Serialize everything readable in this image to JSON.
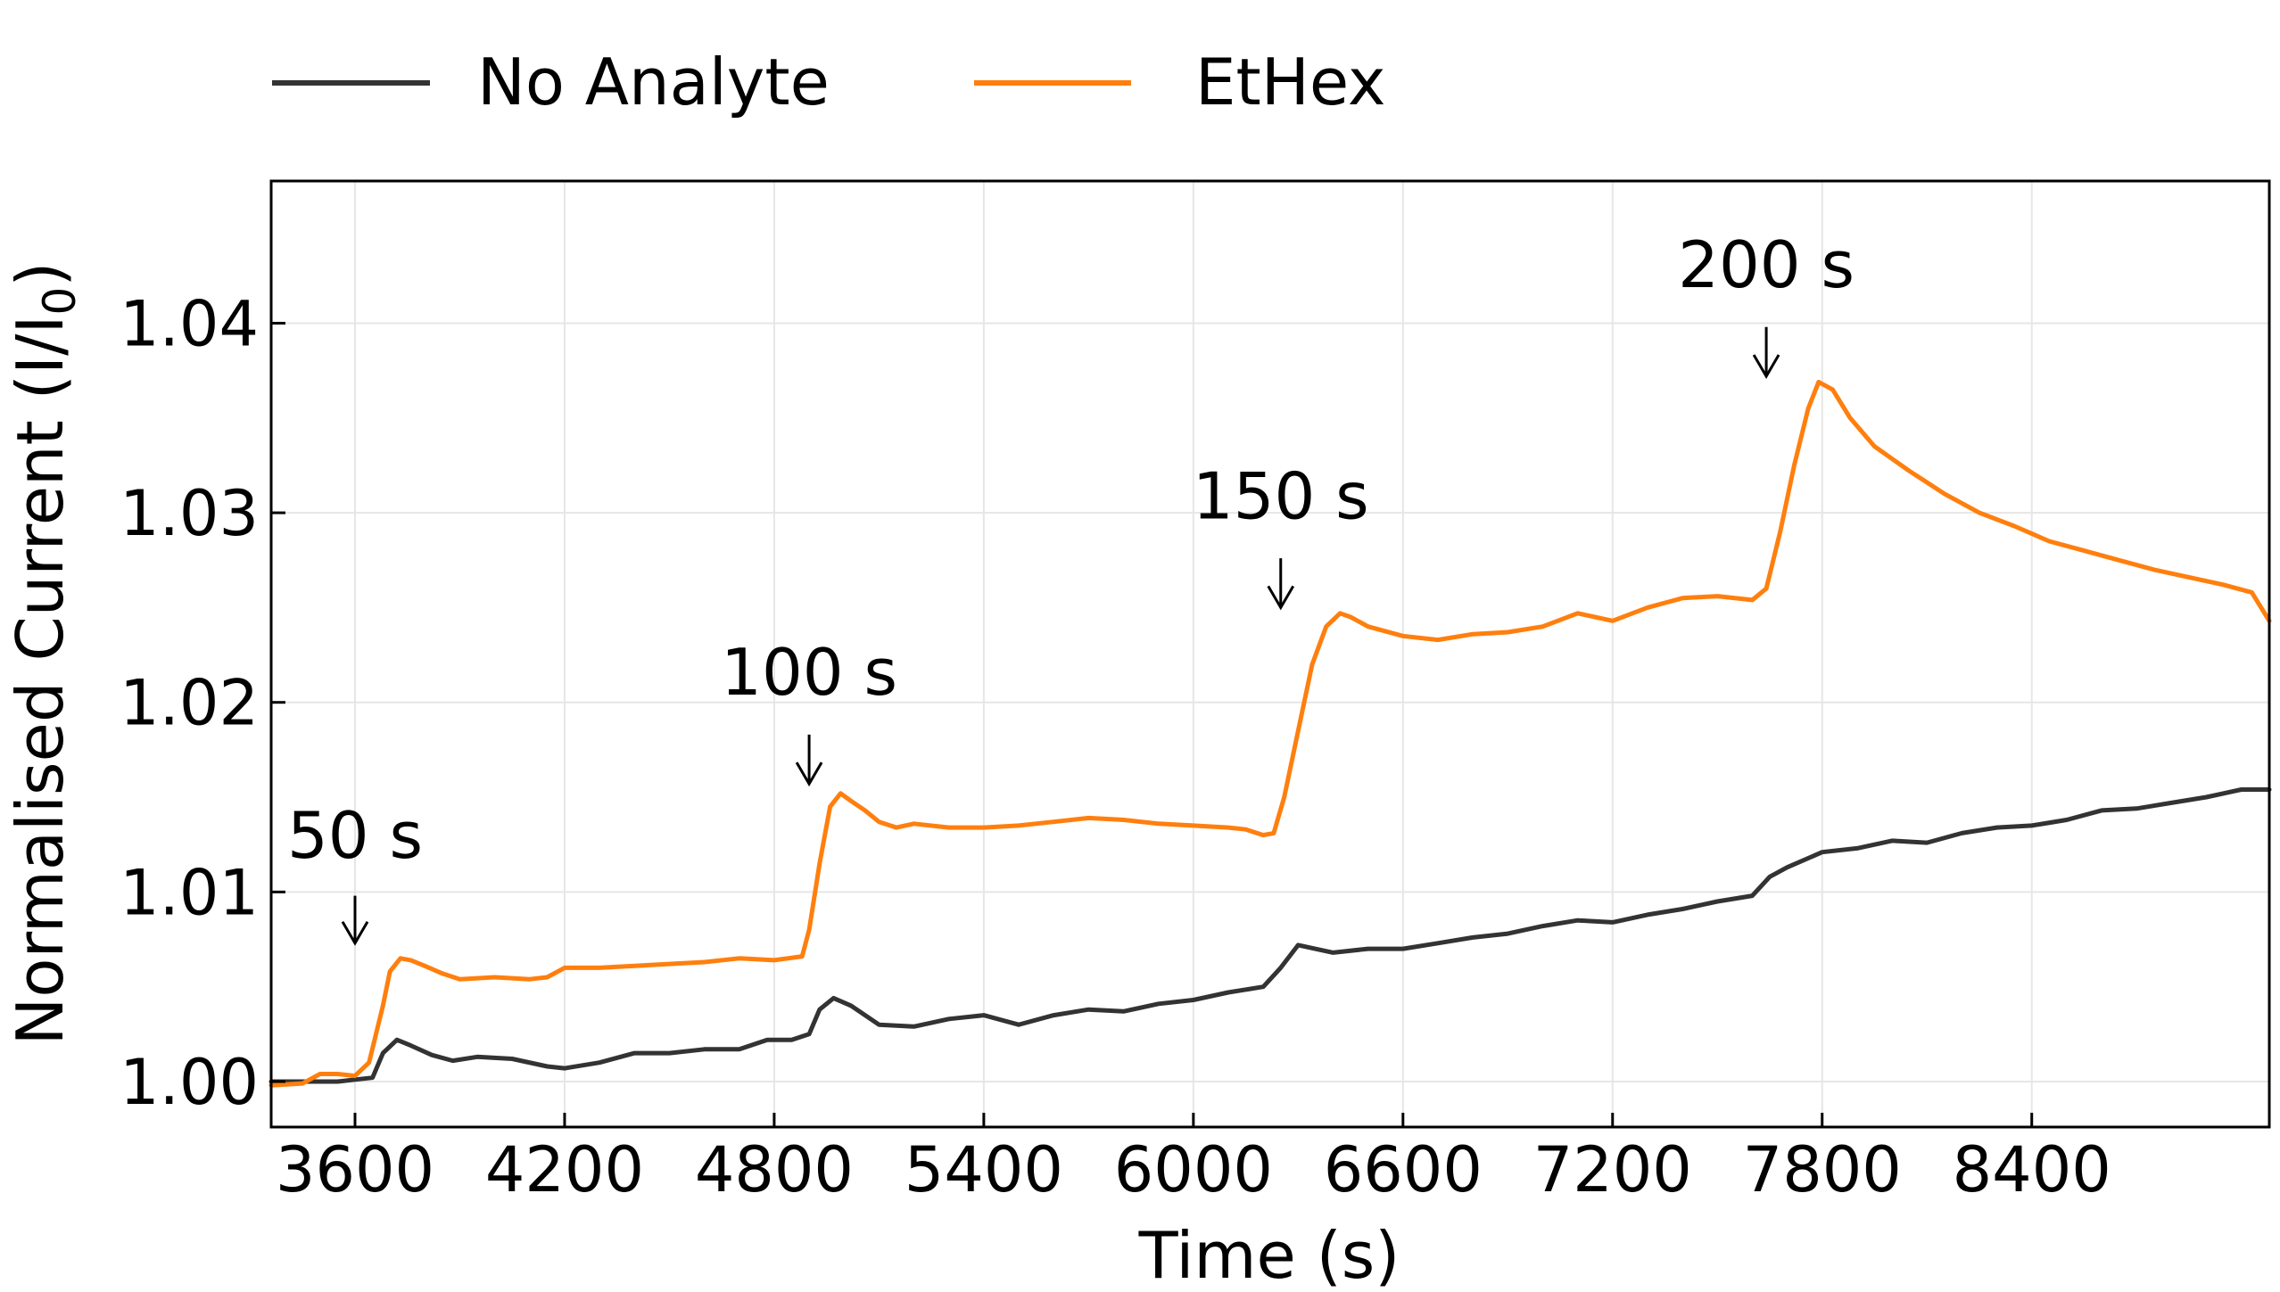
{
  "chart_data": {
    "type": "line",
    "xlabel": "Time (s)",
    "ylabel": "Normalised Current (I/I",
    "ylabel_sub": "0",
    "ylabel_close": ")",
    "xlim": [
      3360,
      9080
    ],
    "ylim": [
      0.9976,
      1.0475
    ],
    "xticks": [
      3600,
      4200,
      4800,
      5400,
      6000,
      6600,
      7200,
      7800,
      8400
    ],
    "yticks": [
      1.0,
      1.01,
      1.02,
      1.03,
      1.04
    ],
    "ytick_labels": [
      "1.00",
      "1.01",
      "1.02",
      "1.03",
      "1.04"
    ],
    "grid": true,
    "legend_position": "top",
    "series": [
      {
        "name": "No Analyte",
        "color": "#333333",
        "x": [
          3360,
          3450,
          3550,
          3600,
          3650,
          3680,
          3720,
          3760,
          3820,
          3880,
          3950,
          4050,
          4150,
          4200,
          4300,
          4400,
          4500,
          4600,
          4700,
          4780,
          4850,
          4900,
          4930,
          4970,
          5020,
          5100,
          5200,
          5300,
          5400,
          5500,
          5600,
          5700,
          5800,
          5900,
          6000,
          6100,
          6200,
          6250,
          6300,
          6400,
          6500,
          6600,
          6700,
          6800,
          6900,
          7000,
          7100,
          7200,
          7300,
          7400,
          7500,
          7600,
          7650,
          7700,
          7800,
          7900,
          8000,
          8100,
          8200,
          8300,
          8400,
          8500,
          8600,
          8700,
          8800,
          8900,
          9000,
          9080
        ],
        "values": [
          1.0,
          1.0,
          1.0,
          1.0001,
          1.0002,
          1.0015,
          1.0022,
          1.0019,
          1.0014,
          1.0011,
          1.0013,
          1.0012,
          1.0008,
          1.0007,
          1.001,
          1.0015,
          1.0015,
          1.0017,
          1.0017,
          1.0022,
          1.0022,
          1.0025,
          1.0038,
          1.0044,
          1.004,
          1.003,
          1.0029,
          1.0033,
          1.0035,
          1.003,
          1.0035,
          1.0038,
          1.0037,
          1.0041,
          1.0043,
          1.0047,
          1.005,
          1.006,
          1.0072,
          1.0068,
          1.007,
          1.007,
          1.0073,
          1.0076,
          1.0078,
          1.0082,
          1.0085,
          1.0084,
          1.0088,
          1.0091,
          1.0095,
          1.0098,
          1.0108,
          1.0113,
          1.0121,
          1.0123,
          1.0127,
          1.0126,
          1.0131,
          1.0134,
          1.0135,
          1.0138,
          1.0143,
          1.0144,
          1.0147,
          1.015,
          1.0154,
          1.0154
        ]
      },
      {
        "name": "EtHex",
        "color": "#ff7f0e",
        "x": [
          3360,
          3450,
          3500,
          3550,
          3600,
          3640,
          3680,
          3700,
          3730,
          3760,
          3800,
          3850,
          3900,
          4000,
          4100,
          4150,
          4200,
          4300,
          4400,
          4500,
          4600,
          4700,
          4800,
          4880,
          4900,
          4930,
          4960,
          4990,
          5020,
          5060,
          5100,
          5150,
          5200,
          5300,
          5400,
          5500,
          5600,
          5700,
          5800,
          5900,
          6000,
          6100,
          6150,
          6200,
          6230,
          6260,
          6300,
          6340,
          6380,
          6420,
          6450,
          6500,
          6600,
          6700,
          6800,
          6900,
          7000,
          7100,
          7200,
          7300,
          7400,
          7500,
          7600,
          7640,
          7680,
          7720,
          7760,
          7790,
          7830,
          7880,
          7950,
          8050,
          8150,
          8250,
          8350,
          8450,
          8550,
          8650,
          8750,
          8850,
          8950,
          9030,
          9080
        ],
        "values": [
          0.9998,
          0.9999,
          1.0004,
          1.0004,
          1.0003,
          1.001,
          1.004,
          1.0058,
          1.0065,
          1.0064,
          1.0061,
          1.0057,
          1.0054,
          1.0055,
          1.0054,
          1.0055,
          1.006,
          1.006,
          1.0061,
          1.0062,
          1.0063,
          1.0065,
          1.0064,
          1.0066,
          1.008,
          1.0115,
          1.0145,
          1.0152,
          1.0148,
          1.0143,
          1.0137,
          1.0134,
          1.0136,
          1.0134,
          1.0134,
          1.0135,
          1.0137,
          1.0139,
          1.0138,
          1.0136,
          1.0135,
          1.0134,
          1.0133,
          1.013,
          1.0131,
          1.015,
          1.0185,
          1.022,
          1.024,
          1.0247,
          1.0245,
          1.024,
          1.0235,
          1.0233,
          1.0236,
          1.0237,
          1.024,
          1.0247,
          1.0243,
          1.025,
          1.0255,
          1.0256,
          1.0254,
          1.026,
          1.029,
          1.0325,
          1.0355,
          1.0369,
          1.0365,
          1.035,
          1.0335,
          1.0322,
          1.031,
          1.03,
          1.0293,
          1.0285,
          1.028,
          1.0275,
          1.027,
          1.0266,
          1.0262,
          1.0258,
          1.0243
        ]
      }
    ],
    "annotations": [
      {
        "label": "50 s",
        "x": 3600,
        "y_text": 1.0118,
        "y_arrow_top": 1.0098,
        "y_arrow_bottom": 1.0073
      },
      {
        "label": "100 s",
        "x": 4900,
        "y_text": 1.0204,
        "y_arrow_top": 1.0183,
        "y_arrow_bottom": 1.0157
      },
      {
        "label": "150 s",
        "x": 6250,
        "y_text": 1.0297,
        "y_arrow_top": 1.0276,
        "y_arrow_bottom": 1.025
      },
      {
        "label": "200 s",
        "x": 7640,
        "y_text": 1.0419,
        "y_arrow_top": 1.0398,
        "y_arrow_bottom": 1.0372
      }
    ]
  }
}
